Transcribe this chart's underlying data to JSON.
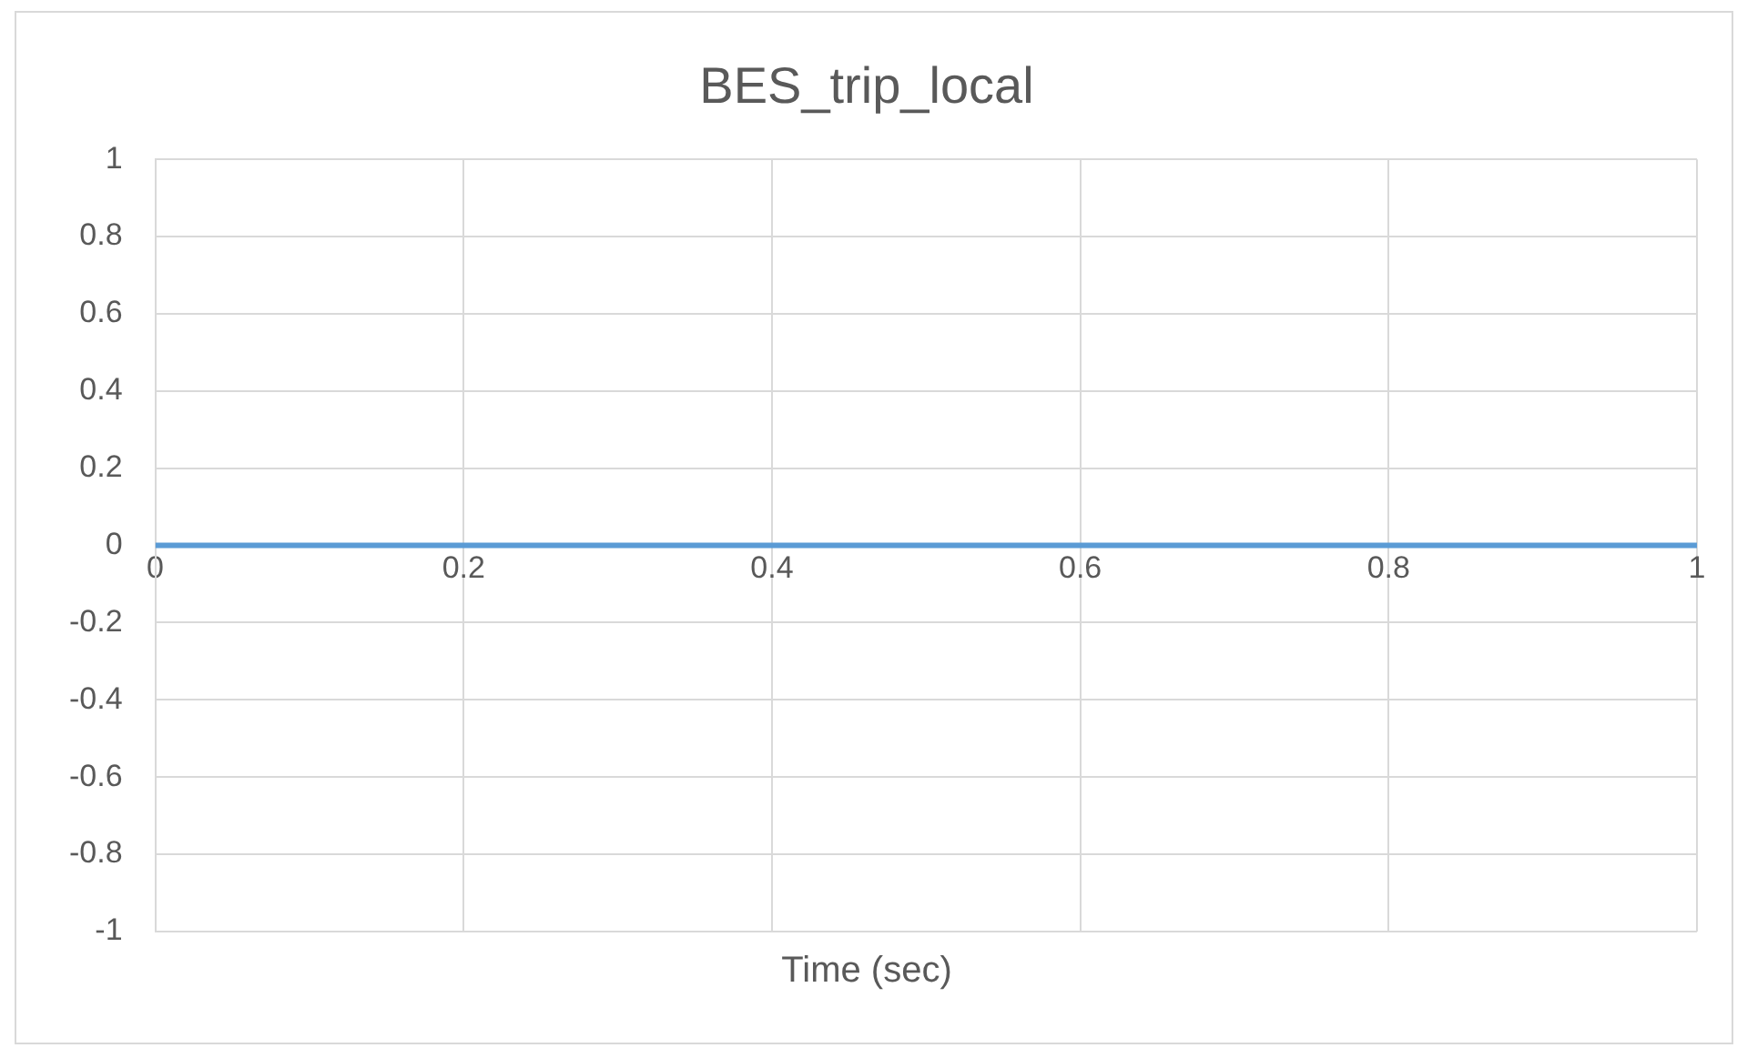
{
  "chart_data": {
    "type": "line",
    "title": "BES_trip_local",
    "xlabel": "Time (sec)",
    "x": [
      0,
      1
    ],
    "series": [
      {
        "color": "#5b9bd5",
        "values": [
          0,
          0
        ]
      }
    ],
    "xlim": [
      0,
      1
    ],
    "xticks": [
      0,
      0.2,
      0.4,
      0.6,
      0.8,
      1
    ],
    "ylim": [
      -1,
      1
    ],
    "yticks": [
      -1,
      -0.8,
      -0.6,
      -0.4,
      -0.2,
      0,
      0.2,
      0.4,
      0.6,
      0.8,
      1
    ],
    "grid": true,
    "legend": false,
    "marker": "none",
    "line_style": "solid"
  }
}
